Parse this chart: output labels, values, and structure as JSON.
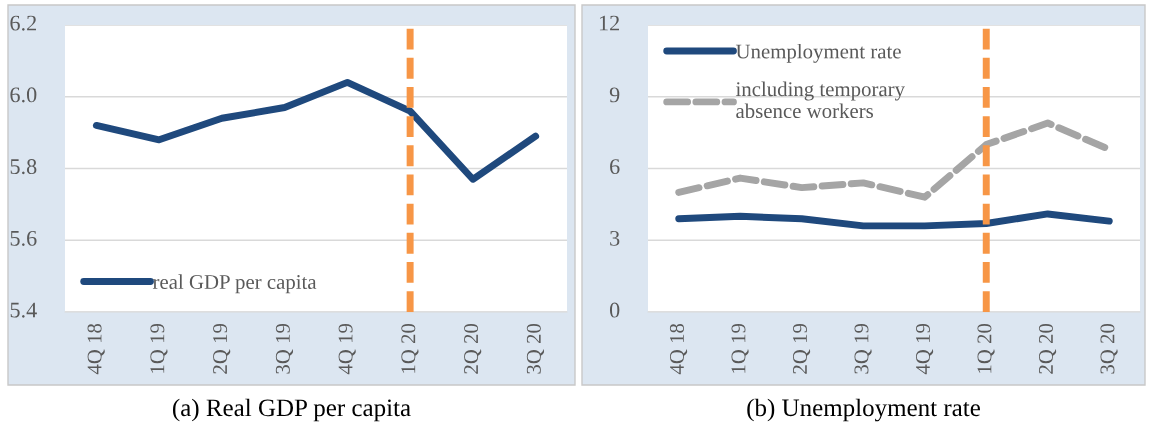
{
  "chart_data": [
    {
      "type": "line",
      "title": "(a) Real GDP per capita",
      "categories": [
        "4Q 18",
        "1Q 19",
        "2Q 19",
        "3Q 19",
        "4Q 19",
        "1Q 20",
        "2Q 20",
        "3Q 20"
      ],
      "series": [
        {
          "name": "real GDP per capita",
          "color": "#1f497d",
          "values": [
            5.92,
            5.88,
            5.94,
            5.97,
            6.04,
            5.96,
            5.77,
            5.89
          ]
        }
      ],
      "ylim": [
        5.4,
        6.2
      ],
      "yticks": [
        {
          "value": 5.4,
          "label": "5.4"
        },
        {
          "value": 5.6,
          "label": "5.6"
        },
        {
          "value": 5.8,
          "label": "5.8"
        },
        {
          "value": 6.0,
          "label": "6.0"
        },
        {
          "value": 6.2,
          "label": "6.2"
        }
      ],
      "grid": "y",
      "legend": "bottom left",
      "line_style": "solid",
      "marker": "none",
      "ref_lines": [
        {
          "axis": "x",
          "value": "1Q 20",
          "color": "#f79646",
          "line_style": "dashed"
        }
      ]
    },
    {
      "type": "line",
      "title": "(b) Unemployment rate",
      "categories": [
        "4Q 18",
        "1Q 19",
        "2Q 19",
        "3Q 19",
        "4Q 19",
        "1Q 20",
        "2Q 20",
        "3Q 20"
      ],
      "series": [
        {
          "name": "Unemployment rate",
          "color": "#1f497d",
          "values": [
            3.9,
            4.0,
            3.9,
            3.6,
            3.6,
            3.7,
            4.1,
            3.8
          ]
        },
        {
          "name": "including temporary\nabsence workers",
          "color": "#a5a5a5",
          "line_style": "dashed",
          "values": [
            5.0,
            5.6,
            5.2,
            5.4,
            4.8,
            7.0,
            7.9,
            6.8
          ]
        }
      ],
      "ylim": [
        0,
        12
      ],
      "yticks": [
        0,
        3,
        6,
        9,
        12
      ],
      "grid": "y",
      "legend": "top left",
      "line_style": "solid",
      "marker": "none",
      "ref_lines": [
        {
          "axis": "x",
          "value": "1Q 20",
          "color": "#f79646",
          "line_style": "dashed"
        }
      ]
    }
  ]
}
